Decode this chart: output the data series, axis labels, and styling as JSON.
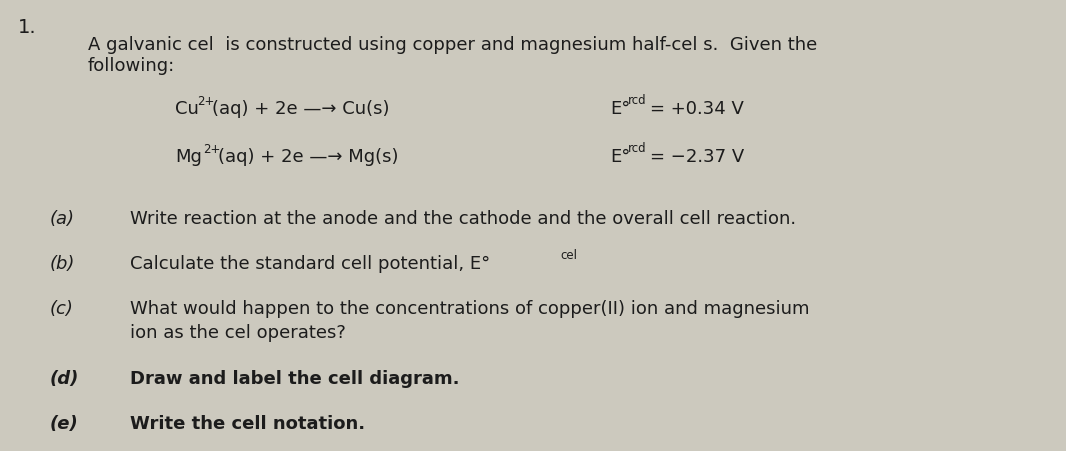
{
  "background_color": "#ccc9be",
  "fig_width": 10.66,
  "fig_height": 4.51,
  "dpi": 100,
  "number": "1.",
  "intro_line1": "A galvanic cel  is constructed using copper and magnesium half-cel s.  Given the",
  "intro_line2": "following:",
  "eq1_main": "(aq) + 2e —→ Cu(s)",
  "eq1_E_val": "= +0.34 V",
  "eq2_main": "(aq) + 2e —→ Mg(s)",
  "eq2_E_val": "= −2.37 V",
  "part_a_label": "(a)",
  "part_a_text": "Write reaction at the anode and the cathode and the overall cell reaction.",
  "part_b_label": "(b)",
  "part_b_pre": "Calculate the standard cell potential, E°",
  "part_b_sub": "cel",
  "part_c_label": "(c)",
  "part_c_text1": "What would happen to the concentrations of copper(II) ion and magnesium",
  "part_c_text2": "ion as the cel operates?",
  "part_d_label": "(d)",
  "part_d_text": "Draw and label the cell diagram.",
  "part_e_label": "(e)",
  "part_e_text": "Write the cell notation.",
  "fs": 13.0,
  "fs_small": 8.5,
  "text_color": "#1c1c1c"
}
